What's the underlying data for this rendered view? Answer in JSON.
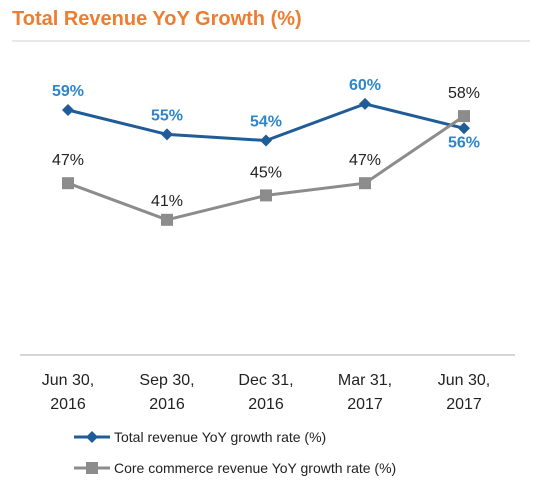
{
  "title": "Total Revenue YoY Growth  (%)",
  "chart_data": {
    "type": "line",
    "title": "Total Revenue YoY Growth  (%)",
    "categories": [
      "Jun 30,\n2016",
      "Sep 30,\n2016",
      "Dec 31,\n2016",
      "Mar 31,\n2017",
      "Jun 30,\n2017"
    ],
    "series": [
      {
        "name": "Total revenue YoY growth rate (%)",
        "values": [
          59,
          55,
          54,
          60,
          56
        ],
        "labels": [
          "59%",
          "55%",
          "54%",
          "60%",
          "56%"
        ],
        "color": "#1F5C99",
        "label_color": "#2E86C9",
        "marker": "diamond"
      },
      {
        "name": "Core commerce revenue YoY growth rate (%)",
        "values": [
          47,
          41,
          45,
          47,
          58
        ],
        "labels": [
          "47%",
          "41%",
          "45%",
          "47%",
          "58%"
        ],
        "color": "#8C8C8C",
        "label_color": "#222222",
        "marker": "square"
      }
    ],
    "ylim": [
      35,
      65
    ],
    "grid": false,
    "legend_position": "bottom"
  }
}
